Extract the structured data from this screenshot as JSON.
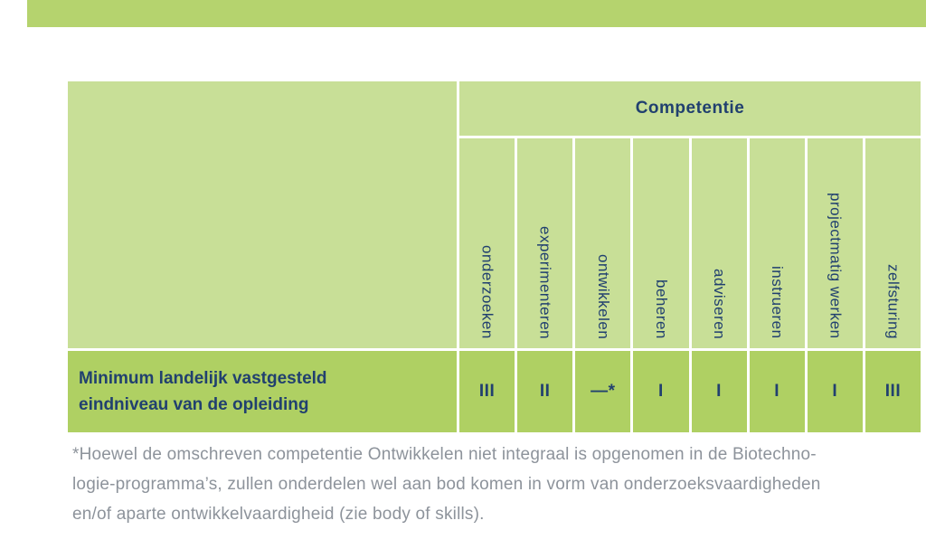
{
  "colors": {
    "cellLight": "#c8df97",
    "cellDark": "#afd063",
    "topStrip": "#b5d36e",
    "navy": "#21406f",
    "gray": "#8d939b"
  },
  "table": {
    "header": {
      "competentie_label": "Competentie"
    },
    "columns": [
      "onderzoeken",
      "experimenteren",
      "ontwikkelen",
      "beheren",
      "adviseren",
      "instrueren",
      "projectmatig werken",
      "zelfsturing"
    ],
    "row": {
      "label_line1": "Minimum landelijk vastgesteld",
      "label_line2": "eindniveau van de opleiding",
      "values": [
        "III",
        "II",
        "—*",
        "I",
        "I",
        "I",
        "I",
        "III"
      ]
    }
  },
  "footnote": {
    "line1": "*Hoewel de omschreven competentie Ontwikkelen niet integraal is opgenomen in de Biotechno-",
    "line2": "logie-programma’s, zullen onderdelen wel aan bod komen in vorm van onderzoeksvaardigheden",
    "line3": "en/of aparte ontwikkelvaardigheid (zie body of skills)."
  }
}
